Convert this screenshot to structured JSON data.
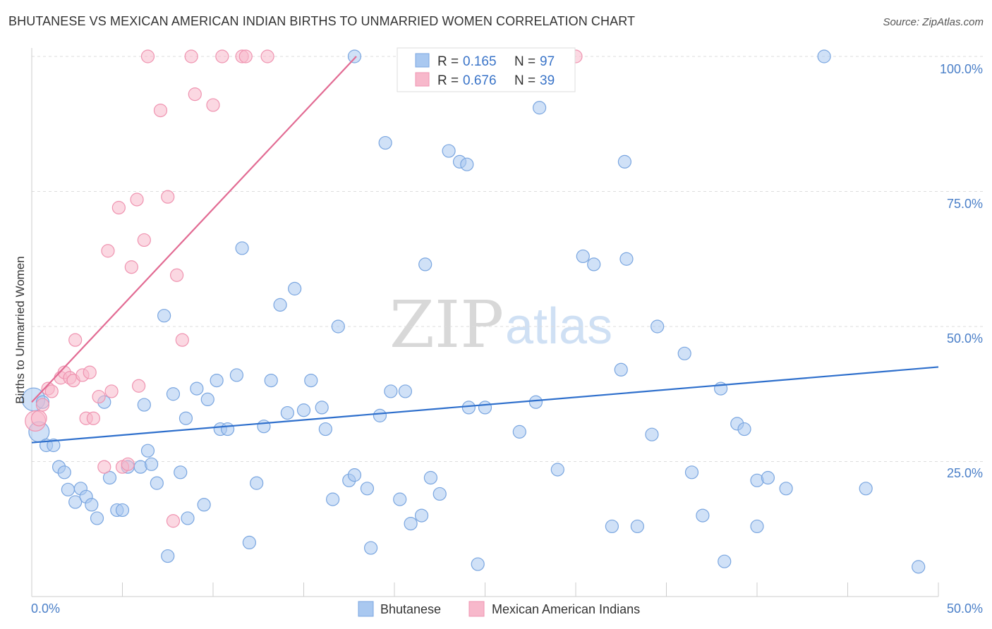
{
  "title": "BHUTANESE VS MEXICAN AMERICAN INDIAN BIRTHS TO UNMARRIED WOMEN CORRELATION CHART",
  "source": "Source: ZipAtlas.com",
  "watermark": {
    "zip": "ZIP",
    "atlas": "atlas"
  },
  "colors": {
    "bhutanese_fill": "#a9c8f0",
    "bhutanese_stroke": "#7aa6e0",
    "bhutanese_line": "#2e6fcc",
    "mexican_fill": "#f7b8cb",
    "mexican_stroke": "#ef93b0",
    "mexican_line": "#e26b93",
    "axis_label": "#4a7fc8",
    "grid": "#dddddd"
  },
  "legend": {
    "rows": [
      {
        "r_label": "R =",
        "r_value": "0.165",
        "n_label": "N =",
        "n_value": "97"
      },
      {
        "r_label": "R =",
        "r_value": "0.676",
        "n_label": "N =",
        "n_value": "39"
      }
    ]
  },
  "chart_data": {
    "type": "scatter",
    "title": "BHUTANESE VS MEXICAN AMERICAN INDIAN BIRTHS TO UNMARRIED WOMEN CORRELATION CHART",
    "xlabel": "",
    "ylabel": "Births to Unmarried Women",
    "xlim": [
      0,
      50
    ],
    "ylim": [
      0,
      100
    ],
    "x_tick_labels": [
      "0.0%",
      "50.0%"
    ],
    "y_tick_labels": [
      "100.0%",
      "75.0%",
      "50.0%",
      "25.0%"
    ],
    "y_ticks": [
      100,
      75,
      50,
      25
    ],
    "grid": true,
    "legend_position": "top-center",
    "series": [
      {
        "name": "Bhutanese",
        "r": 0.165,
        "n": 97,
        "trend": {
          "x": [
            0,
            50
          ],
          "y": [
            28.5,
            42.5
          ]
        },
        "points": [
          [
            0.1,
            36.5,
            1.8
          ],
          [
            0.4,
            30.5,
            1.6
          ],
          [
            0.6,
            36,
            1
          ],
          [
            0.8,
            28,
            1
          ],
          [
            1.2,
            28,
            1
          ],
          [
            1.5,
            24,
            1
          ],
          [
            1.8,
            23,
            1
          ],
          [
            2.0,
            19.8,
            1
          ],
          [
            2.4,
            17.5,
            1
          ],
          [
            2.7,
            20,
            1
          ],
          [
            3.0,
            18.5,
            1
          ],
          [
            3.3,
            17,
            1
          ],
          [
            3.6,
            14.5,
            1
          ],
          [
            4.0,
            36,
            1
          ],
          [
            4.3,
            22,
            1
          ],
          [
            4.7,
            16,
            1
          ],
          [
            5.0,
            16,
            1
          ],
          [
            5.3,
            24,
            1
          ],
          [
            6.0,
            24,
            1
          ],
          [
            6.2,
            35.5,
            1
          ],
          [
            6.4,
            27,
            1
          ],
          [
            6.6,
            24.5,
            1
          ],
          [
            6.9,
            21,
            1
          ],
          [
            7.3,
            52,
            1
          ],
          [
            7.5,
            7.5,
            1
          ],
          [
            7.8,
            37.5,
            1
          ],
          [
            8.2,
            23,
            1
          ],
          [
            8.5,
            33,
            1
          ],
          [
            8.6,
            14.5,
            1
          ],
          [
            9.1,
            38.5,
            1
          ],
          [
            9.5,
            17,
            1
          ],
          [
            9.7,
            36.5,
            1
          ],
          [
            10.2,
            40,
            1
          ],
          [
            10.4,
            31,
            1
          ],
          [
            10.8,
            31,
            1
          ],
          [
            11.3,
            41,
            1
          ],
          [
            11.6,
            64.5,
            1
          ],
          [
            12.0,
            10,
            1
          ],
          [
            12.4,
            21,
            1
          ],
          [
            12.8,
            31.5,
            1
          ],
          [
            13.2,
            40,
            1
          ],
          [
            13.7,
            54,
            1
          ],
          [
            14.1,
            34,
            1
          ],
          [
            14.5,
            57,
            1
          ],
          [
            15.0,
            34.5,
            1
          ],
          [
            15.4,
            40,
            1
          ],
          [
            16.0,
            35,
            1
          ],
          [
            16.2,
            31,
            1
          ],
          [
            16.6,
            18,
            1
          ],
          [
            16.9,
            50,
            1
          ],
          [
            17.5,
            21.5,
            1
          ],
          [
            17.8,
            100,
            1
          ],
          [
            17.8,
            22.5,
            1
          ],
          [
            18.5,
            20,
            1
          ],
          [
            18.7,
            9,
            1
          ],
          [
            19.2,
            33.5,
            1
          ],
          [
            19.5,
            84,
            1
          ],
          [
            19.8,
            38,
            1
          ],
          [
            20.3,
            18,
            1
          ],
          [
            20.6,
            38,
            1
          ],
          [
            20.9,
            13.5,
            1
          ],
          [
            21.5,
            15,
            1
          ],
          [
            21.7,
            61.5,
            1
          ],
          [
            22.0,
            22,
            1
          ],
          [
            22.5,
            19,
            1
          ],
          [
            23.0,
            82.5,
            1
          ],
          [
            23.6,
            80.5,
            1
          ],
          [
            24.0,
            80,
            1
          ],
          [
            24.1,
            35,
            1
          ],
          [
            24.6,
            6,
            1
          ],
          [
            25.0,
            35,
            1
          ],
          [
            26.9,
            30.5,
            1
          ],
          [
            27.8,
            36,
            1
          ],
          [
            28.0,
            90.5,
            1
          ],
          [
            29.0,
            23.5,
            1
          ],
          [
            30.4,
            63,
            1
          ],
          [
            31.0,
            61.5,
            1
          ],
          [
            32.0,
            13,
            1
          ],
          [
            32.5,
            42,
            1
          ],
          [
            32.7,
            80.5,
            1
          ],
          [
            32.8,
            62.5,
            1
          ],
          [
            33.4,
            13,
            1
          ],
          [
            34.2,
            30,
            1
          ],
          [
            34.5,
            50,
            1
          ],
          [
            36.0,
            45,
            1
          ],
          [
            36.4,
            23,
            1
          ],
          [
            37.0,
            15,
            1
          ],
          [
            38.0,
            38.5,
            1
          ],
          [
            38.2,
            6.5,
            1
          ],
          [
            38.9,
            32,
            1
          ],
          [
            39.3,
            31,
            1
          ],
          [
            40.0,
            13,
            1
          ],
          [
            40.0,
            21.5,
            1
          ],
          [
            40.6,
            22,
            1
          ],
          [
            41.6,
            20,
            1
          ],
          [
            43.7,
            100,
            1
          ],
          [
            46.0,
            20,
            1
          ],
          [
            48.9,
            5.5,
            1
          ]
        ]
      },
      {
        "name": "Mexican American Indians",
        "r": 0.676,
        "n": 39,
        "trend": {
          "x": [
            0,
            17.9
          ],
          "y": [
            36,
            100
          ]
        },
        "points": [
          [
            0.2,
            32.5,
            1.6
          ],
          [
            0.4,
            33,
            1.2
          ],
          [
            0.6,
            35.5,
            1
          ],
          [
            0.9,
            38.5,
            1
          ],
          [
            1.1,
            38,
            1
          ],
          [
            1.6,
            40.5,
            1
          ],
          [
            1.8,
            41.5,
            1
          ],
          [
            2.1,
            40.5,
            1
          ],
          [
            2.3,
            40,
            1
          ],
          [
            2.4,
            47.5,
            1
          ],
          [
            2.8,
            41,
            1
          ],
          [
            3.0,
            33,
            1
          ],
          [
            3.2,
            41.5,
            1
          ],
          [
            3.4,
            33,
            1
          ],
          [
            3.7,
            37,
            1
          ],
          [
            4.0,
            24,
            1
          ],
          [
            4.2,
            64,
            1
          ],
          [
            4.4,
            38,
            1
          ],
          [
            4.8,
            72,
            1
          ],
          [
            5.0,
            24,
            1
          ],
          [
            5.3,
            24.5,
            1
          ],
          [
            5.5,
            61,
            1
          ],
          [
            5.8,
            73.5,
            1
          ],
          [
            5.9,
            39,
            1
          ],
          [
            6.2,
            66,
            1
          ],
          [
            6.4,
            100,
            1
          ],
          [
            7.1,
            90,
            1
          ],
          [
            7.5,
            74,
            1
          ],
          [
            7.8,
            14,
            1
          ],
          [
            8.0,
            59.5,
            1
          ],
          [
            8.3,
            47.5,
            1
          ],
          [
            8.8,
            100,
            1
          ],
          [
            9.0,
            93,
            1
          ],
          [
            10.0,
            91,
            1
          ],
          [
            10.5,
            100,
            1
          ],
          [
            11.6,
            100,
            1
          ],
          [
            11.8,
            100,
            1
          ],
          [
            13.0,
            100,
            1
          ],
          [
            30.0,
            100,
            1
          ]
        ]
      }
    ]
  },
  "bottom_legend": [
    {
      "label": "Bhutanese"
    },
    {
      "label": "Mexican American Indians"
    }
  ]
}
